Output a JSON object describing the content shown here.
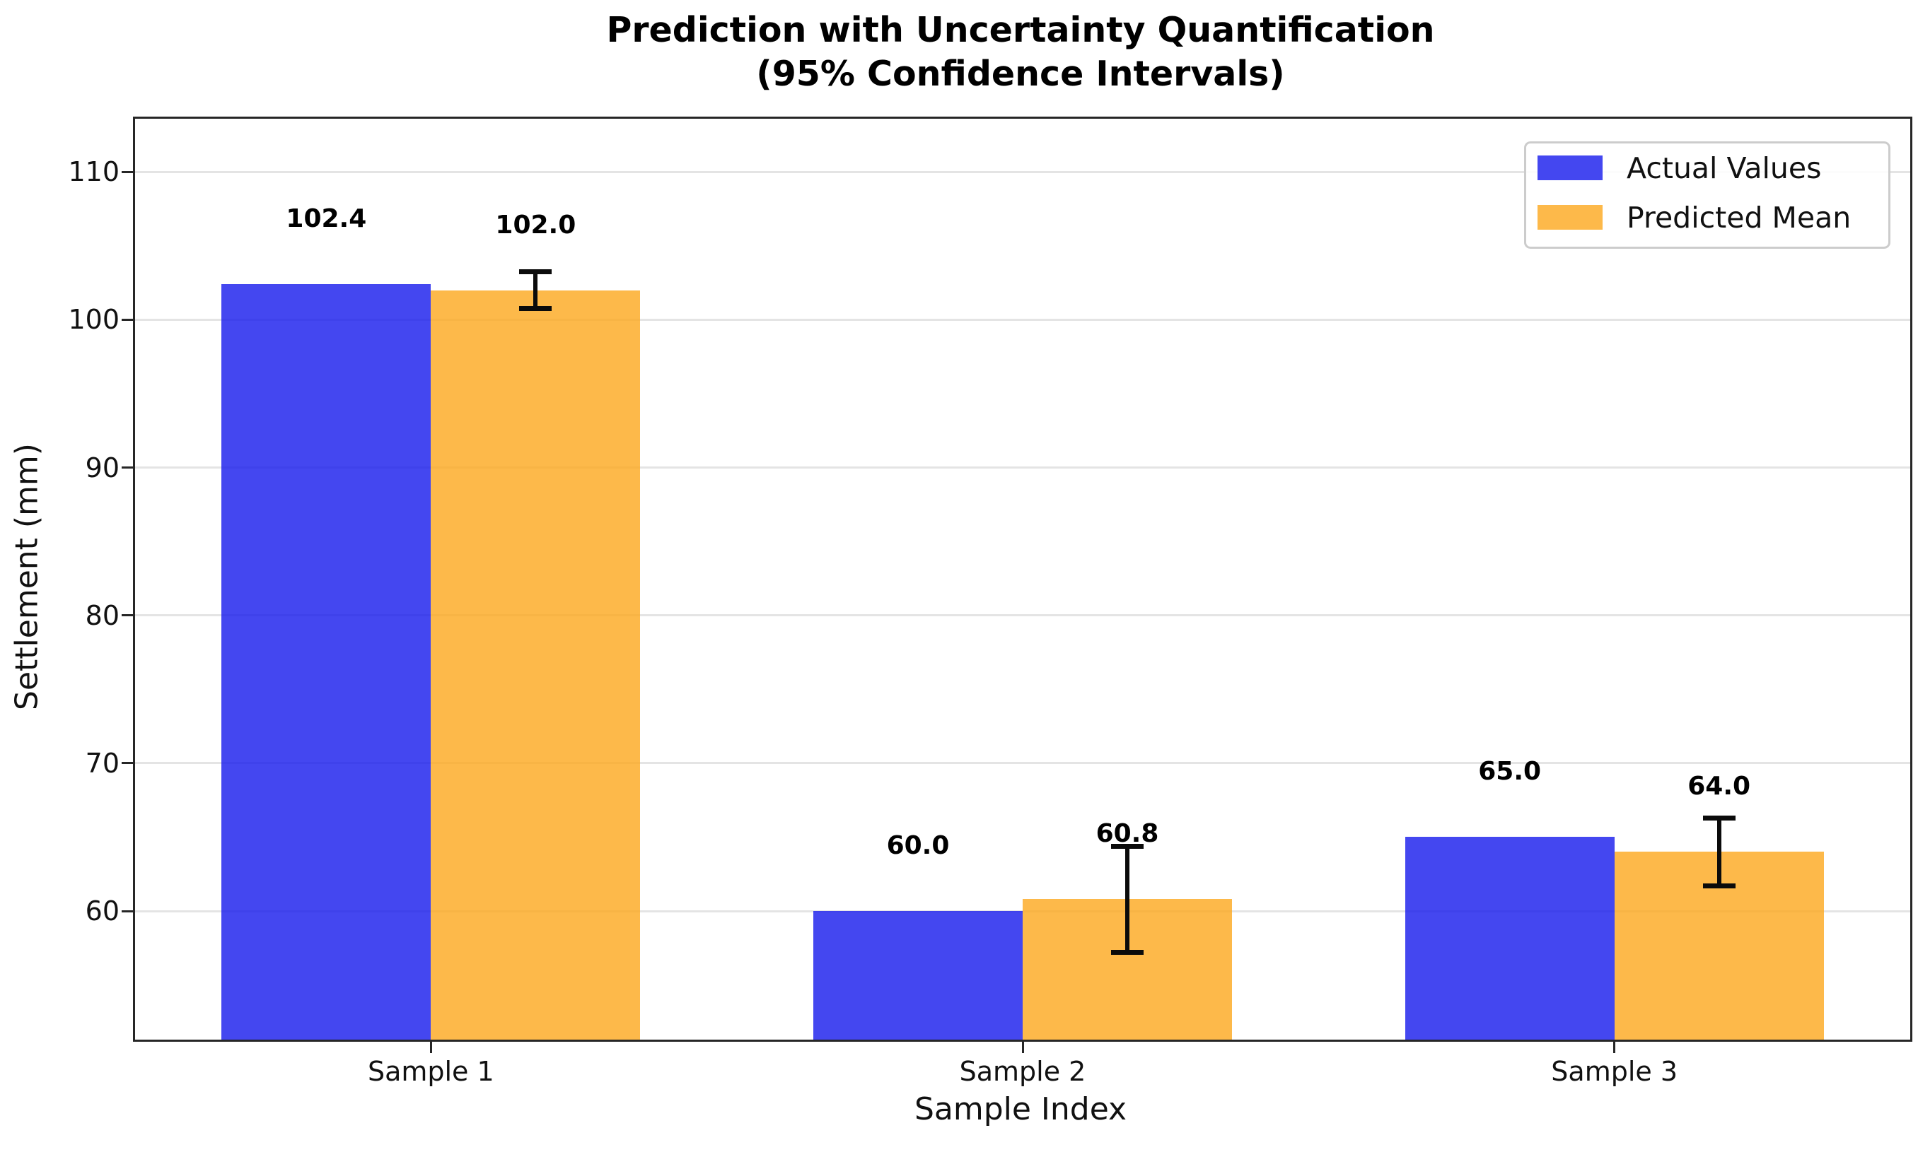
{
  "title": {
    "line1": "Prediction with Uncertainty Quantification",
    "line2": "(95% Confidence Intervals)"
  },
  "axes": {
    "xlabel": "Sample Index",
    "ylabel": "Settlement (mm)"
  },
  "legend": {
    "position": "upper right",
    "items": [
      {
        "label": "Actual Values",
        "color": "rgba(21,25,236,0.8)"
      },
      {
        "label": "Predicted Mean",
        "color": "rgba(253,168,29,0.8)"
      }
    ]
  },
  "chart_data": {
    "type": "bar",
    "title": "Prediction with Uncertainty Quantification (95% Confidence Intervals)",
    "xlabel": "Sample Index",
    "ylabel": "Settlement (mm)",
    "categories": [
      "Sample 1",
      "Sample 2",
      "Sample 3"
    ],
    "series": [
      {
        "name": "Actual Values",
        "color": "rgba(21,25,236,0.8)",
        "values": [
          102.4,
          60.0,
          65.0
        ],
        "labels": [
          "102.4",
          "60.0",
          "65.0"
        ]
      },
      {
        "name": "Predicted Mean",
        "color": "rgba(253,168,29,0.8)",
        "values": [
          102.0,
          60.8,
          64.0
        ],
        "labels": [
          "102.0",
          "60.8",
          "64.0"
        ],
        "ci_low": [
          100.75,
          57.2,
          61.7
        ],
        "ci_high": [
          103.25,
          64.4,
          66.3
        ]
      }
    ],
    "errorbar_color": "#0b0b0b",
    "yticks": [
      60,
      70,
      80,
      90,
      100,
      110
    ],
    "ylim": [
      51.3,
      113.6
    ],
    "grid": "horizontal",
    "gridline_color": "#e4e4e4",
    "legend_position": "upper right"
  }
}
